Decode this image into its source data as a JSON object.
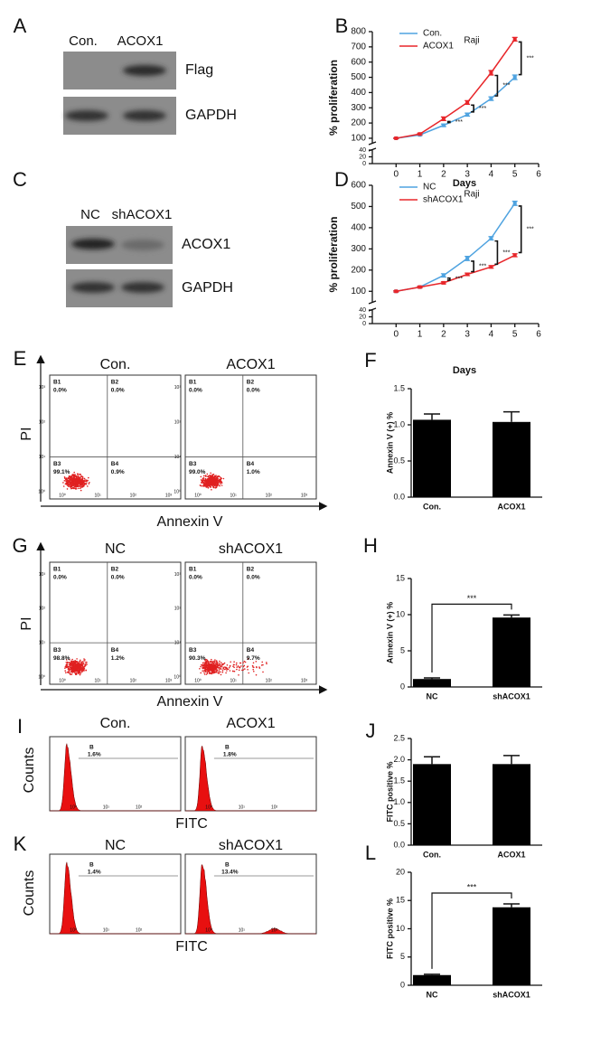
{
  "panel_labels": [
    "A",
    "B",
    "C",
    "D",
    "E",
    "F",
    "G",
    "H",
    "I",
    "J",
    "K",
    "L"
  ],
  "blot_a": {
    "lanes": [
      "Con.",
      "ACOX1"
    ],
    "rows": [
      "Flag",
      "GAPDH"
    ]
  },
  "blot_c": {
    "lanes": [
      "NC",
      "shACOX1"
    ],
    "rows": [
      "ACOX1",
      "GAPDH"
    ]
  },
  "flow_e": {
    "columns": [
      "Con.",
      "ACOX1"
    ],
    "y_label": "PI",
    "x_label": "Annexin V",
    "quadrant_names": [
      "B1",
      "B2",
      "B3",
      "B4"
    ],
    "log_ticks": [
      "10⁰",
      "10¹",
      "10²",
      "10³"
    ],
    "plots": [
      {
        "pct": [
          "0.0%",
          "0.0%",
          "99.1%",
          "0.9%"
        ]
      },
      {
        "pct": [
          "0.0%",
          "0.0%",
          "99.0%",
          "1.0%"
        ]
      }
    ]
  },
  "flow_g": {
    "columns": [
      "NC",
      "shACOX1"
    ],
    "y_label": "PI",
    "x_label": "Annexin V",
    "quadrant_names": [
      "B1",
      "B2",
      "B3",
      "B4"
    ],
    "log_ticks": [
      "10⁰",
      "10¹",
      "10²",
      "10³"
    ],
    "plots": [
      {
        "pct": [
          "0.0%",
          "0.0%",
          "98.8%",
          "1.2%"
        ]
      },
      {
        "pct": [
          "0.0%",
          "0.0%",
          "90.3%",
          "9.7%"
        ]
      }
    ]
  },
  "hist_i": {
    "columns": [
      "Con.",
      "ACOX1"
    ],
    "y_label": "Counts",
    "x_label": "FITC",
    "gate": "B",
    "log_ticks": [
      "10⁰",
      "10¹",
      "10²"
    ],
    "pct": [
      "1.6%",
      "1.8%"
    ]
  },
  "hist_k": {
    "columns": [
      "NC",
      "shACOX1"
    ],
    "y_label": "Counts",
    "x_label": "FITC",
    "gate": "B",
    "log_ticks": [
      "10⁰",
      "10¹",
      "10²"
    ],
    "pct": [
      "1.4%",
      "13.4%"
    ]
  },
  "chart_data": [
    {
      "type": "line",
      "title": "Raji",
      "x_label": "Days",
      "y_label": "% proliferation",
      "x": [
        0,
        1,
        2,
        3,
        4,
        5
      ],
      "xlim": [
        -1,
        6
      ],
      "xticks": [
        0,
        1,
        2,
        3,
        4,
        5,
        6
      ],
      "ylim": [
        70,
        800
      ],
      "yticks": [
        100,
        200,
        300,
        400,
        500,
        600,
        700,
        800
      ],
      "lower_ylim": [
        0,
        40
      ],
      "lower_yticks": [
        0,
        20,
        40
      ],
      "series": [
        {
          "name": "Con.",
          "color": "#4fa3e0",
          "values": [
            100,
            122,
            185,
            255,
            360,
            500
          ],
          "errors": [
            3,
            4,
            8,
            10,
            12,
            15
          ]
        },
        {
          "name": "ACOX1",
          "color": "#e8262a",
          "values": [
            100,
            128,
            228,
            335,
            530,
            750
          ],
          "errors": [
            3,
            5,
            12,
            12,
            15,
            12
          ]
        }
      ],
      "annotations": [
        "***",
        "***",
        "***",
        "***"
      ]
    },
    {
      "type": "line",
      "title": "Raji",
      "x_label": "Days",
      "y_label": "% proliferation",
      "x": [
        0,
        1,
        2,
        3,
        4,
        5
      ],
      "xlim": [
        -1,
        6
      ],
      "xticks": [
        0,
        1,
        2,
        3,
        4,
        5,
        6
      ],
      "ylim": [
        50,
        600
      ],
      "yticks": [
        100,
        200,
        300,
        400,
        500,
        600
      ],
      "lower_ylim": [
        0,
        40
      ],
      "lower_yticks": [
        0,
        20,
        40
      ],
      "series": [
        {
          "name": "NC",
          "color": "#4fa3e0",
          "values": [
            100,
            120,
            175,
            255,
            350,
            515
          ],
          "errors": [
            3,
            4,
            8,
            10,
            8,
            10
          ]
        },
        {
          "name": "shACOX1",
          "color": "#e8262a",
          "values": [
            100,
            120,
            140,
            180,
            215,
            270
          ],
          "errors": [
            3,
            4,
            5,
            6,
            6,
            7
          ]
        }
      ],
      "annotations": [
        "***",
        "***",
        "***",
        "***"
      ]
    },
    {
      "type": "bar",
      "y_label": "Annexin V (+) %",
      "categories": [
        "Con.",
        "ACOX1"
      ],
      "values": [
        1.07,
        1.04
      ],
      "errors": [
        0.08,
        0.14
      ],
      "color": "#000000",
      "ylim": [
        0,
        1.5
      ],
      "yticks": [
        {
          "value": 0,
          "label": "0.0"
        },
        {
          "value": 0.5,
          "label": "0.5"
        },
        {
          "value": 1,
          "label": "1.0"
        },
        {
          "value": 1.5,
          "label": "1.5"
        }
      ]
    },
    {
      "type": "bar",
      "y_label": "Annexin V (+) %",
      "categories": [
        "NC",
        "shACOX1"
      ],
      "values": [
        1.1,
        9.6
      ],
      "errors": [
        0.15,
        0.35
      ],
      "color": "#000000",
      "ylim": [
        0,
        15
      ],
      "yticks": [
        0,
        5,
        10,
        15
      ],
      "annotation": "***"
    },
    {
      "type": "bar",
      "y_label": "FITC positive %",
      "categories": [
        "Con.",
        "ACOX1"
      ],
      "values": [
        1.9,
        1.9
      ],
      "errors": [
        0.17,
        0.2
      ],
      "color": "#000000",
      "ylim": [
        0,
        2.5
      ],
      "yticks": [
        {
          "value": 0,
          "label": "0.0"
        },
        {
          "value": 0.5,
          "label": "0.5"
        },
        {
          "value": 1,
          "label": "1.0"
        },
        {
          "value": 1.5,
          "label": "1.5"
        },
        {
          "value": 2,
          "label": "2.0"
        },
        {
          "value": 2.5,
          "label": "2.5"
        }
      ]
    },
    {
      "type": "bar",
      "y_label": "FITC positive %",
      "categories": [
        "NC",
        "shACOX1"
      ],
      "values": [
        1.8,
        13.8
      ],
      "errors": [
        0.15,
        0.6
      ],
      "color": "#000000",
      "ylim": [
        0,
        20
      ],
      "yticks": [
        0,
        5,
        10,
        15,
        20
      ],
      "annotation": "***"
    }
  ]
}
